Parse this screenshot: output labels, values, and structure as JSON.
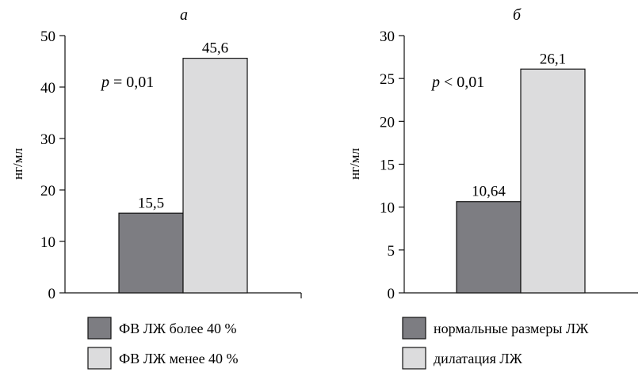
{
  "chart_data": [
    {
      "type": "bar",
      "title": "а",
      "ylabel": "нг/мл",
      "ylim": [
        0,
        50
      ],
      "yticks": [
        "0",
        "10",
        "20",
        "30",
        "40",
        "50"
      ],
      "annotation": {
        "p_symbol": "p",
        "p_rest": " = 0,01"
      },
      "bars": [
        {
          "name": "ФВ ЛЖ более 40 %",
          "value": 15.5,
          "label": "15,5",
          "color": "#7d7d82"
        },
        {
          "name": "ФВ ЛЖ менее 40 %",
          "value": 45.6,
          "label": "45,6",
          "color": "#dcdcdd"
        }
      ]
    },
    {
      "type": "bar",
      "title": "б",
      "ylabel": "нг/мл",
      "ylim": [
        0,
        30
      ],
      "yticks": [
        "0",
        "5",
        "10",
        "15",
        "20",
        "25",
        "30"
      ],
      "annotation": {
        "p_symbol": "p",
        "p_rest": " < 0,01"
      },
      "bars": [
        {
          "name": "нормальные размеры ЛЖ",
          "value": 10.64,
          "label": "10,64",
          "color": "#7d7d82"
        },
        {
          "name": "дилатация ЛЖ",
          "value": 26.1,
          "label": "26,1",
          "color": "#dcdcdd"
        }
      ]
    }
  ]
}
